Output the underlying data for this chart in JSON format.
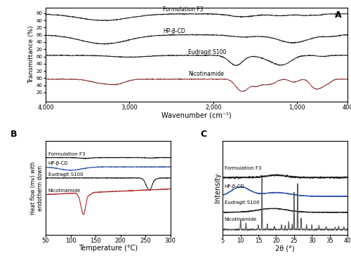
{
  "panel_A_label": "A",
  "panel_B_label": "B",
  "panel_C_label": "C",
  "ftir_xlabel": "Wavenumber (cm⁻¹)",
  "ftir_ylabel": "Transmittance (%)",
  "dsc_xlabel": "Temperature (°C)",
  "dsc_ylabel": "Heat flow (mv) with\nendotherm down",
  "xrd_xlabel": "2θ (°)",
  "xrd_ylabel": "Intensity",
  "labels": [
    "Formulation F3",
    "HP-β-CD",
    "Eudragit S100",
    "Nicotinamide"
  ],
  "ftir_colors": [
    "#222222",
    "#222222",
    "#222222",
    "#8B3333"
  ],
  "dsc_colors": [
    "#222222",
    "#3355aa",
    "#222222",
    "#aa2222"
  ],
  "xrd_colors": [
    "#222222",
    "#3355aa",
    "#222222",
    "#555555"
  ],
  "background": "#ffffff",
  "ftir_ytick_vals": [
    20,
    40,
    60
  ],
  "ftir_offsets": [
    180,
    120,
    60,
    0
  ],
  "dsc_offsets": [
    5.5,
    3.8,
    1.8,
    -1.2
  ],
  "xrd_offsets": [
    5.5,
    3.5,
    1.8,
    0.0
  ]
}
